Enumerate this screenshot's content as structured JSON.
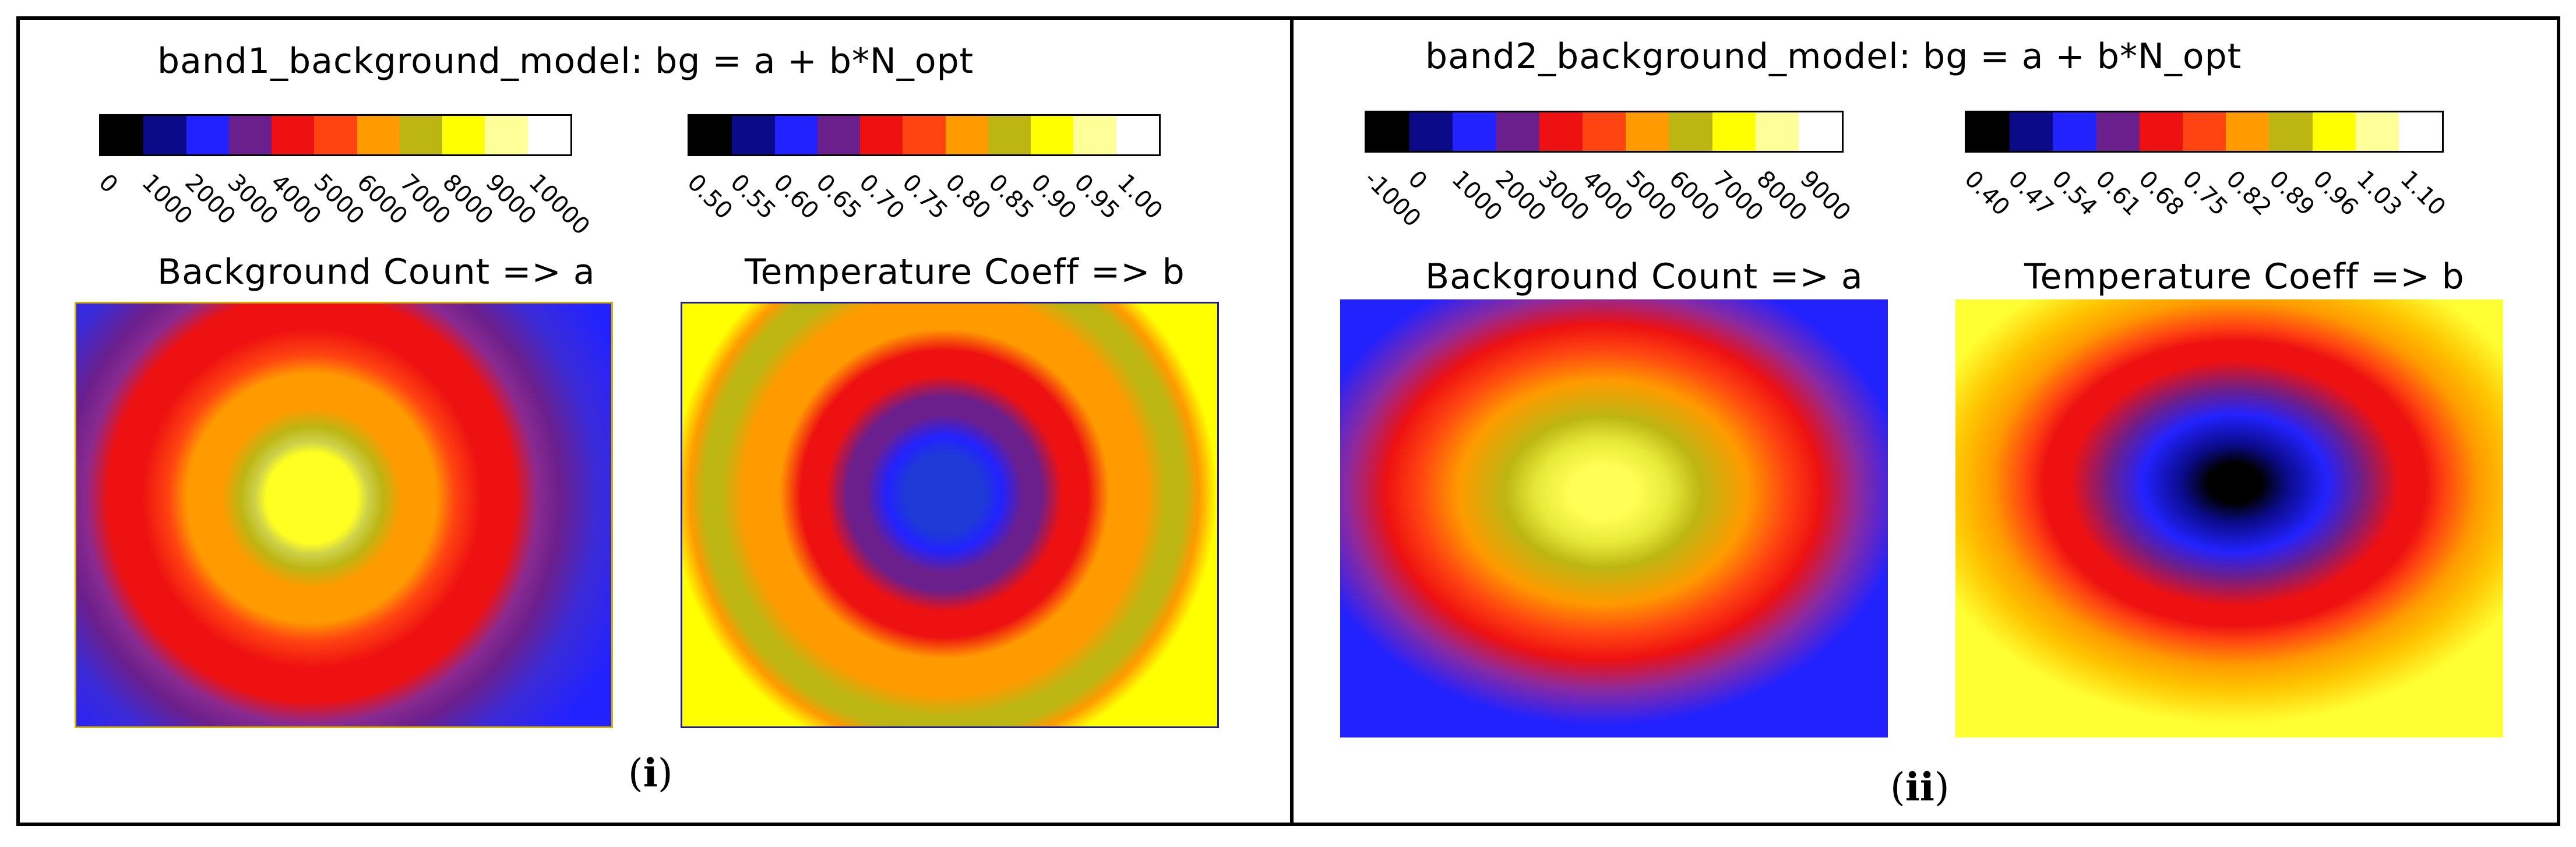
{
  "palette": [
    "#000000",
    "#0b0b8a",
    "#2222ff",
    "#6b1f8c",
    "#ee1111",
    "#ff4411",
    "#ff9a00",
    "#bdb512",
    "#ffff00",
    "#ffff99",
    "#ffffff"
  ],
  "panels": [
    {
      "title": "band1_background_model: bg = a + b*N_opt",
      "tag": "i",
      "bg_cbar": {
        "ticks": [
          "0",
          "1000",
          "2000",
          "3000",
          "4000",
          "5000",
          "6000",
          "7000",
          "8000",
          "9000",
          "10000"
        ]
      },
      "bg_label": "Background Count => a",
      "tc_cbar": {
        "ticks": [
          "0.50",
          "0.55",
          "0.60",
          "0.65",
          "0.70",
          "0.75",
          "0.80",
          "0.85",
          "0.90",
          "0.95",
          "1.00"
        ]
      },
      "tc_label": "Temperature Coeff => b"
    },
    {
      "title": "band2_background_model: bg = a + b*N_opt",
      "tag": "ii",
      "bg_cbar": {
        "ticks": [
          "-1000",
          "0",
          "1000",
          "2000",
          "3000",
          "4000",
          "5000",
          "6000",
          "7000",
          "8000",
          "9000"
        ]
      },
      "bg_label": "Background Count => a",
      "tc_cbar": {
        "ticks": [
          "0.40",
          "0.47",
          "0.54",
          "0.61",
          "0.68",
          "0.75",
          "0.82",
          "0.89",
          "0.96",
          "1.03",
          "1.10"
        ]
      },
      "tc_label": "Temperature Coeff => b"
    }
  ]
}
